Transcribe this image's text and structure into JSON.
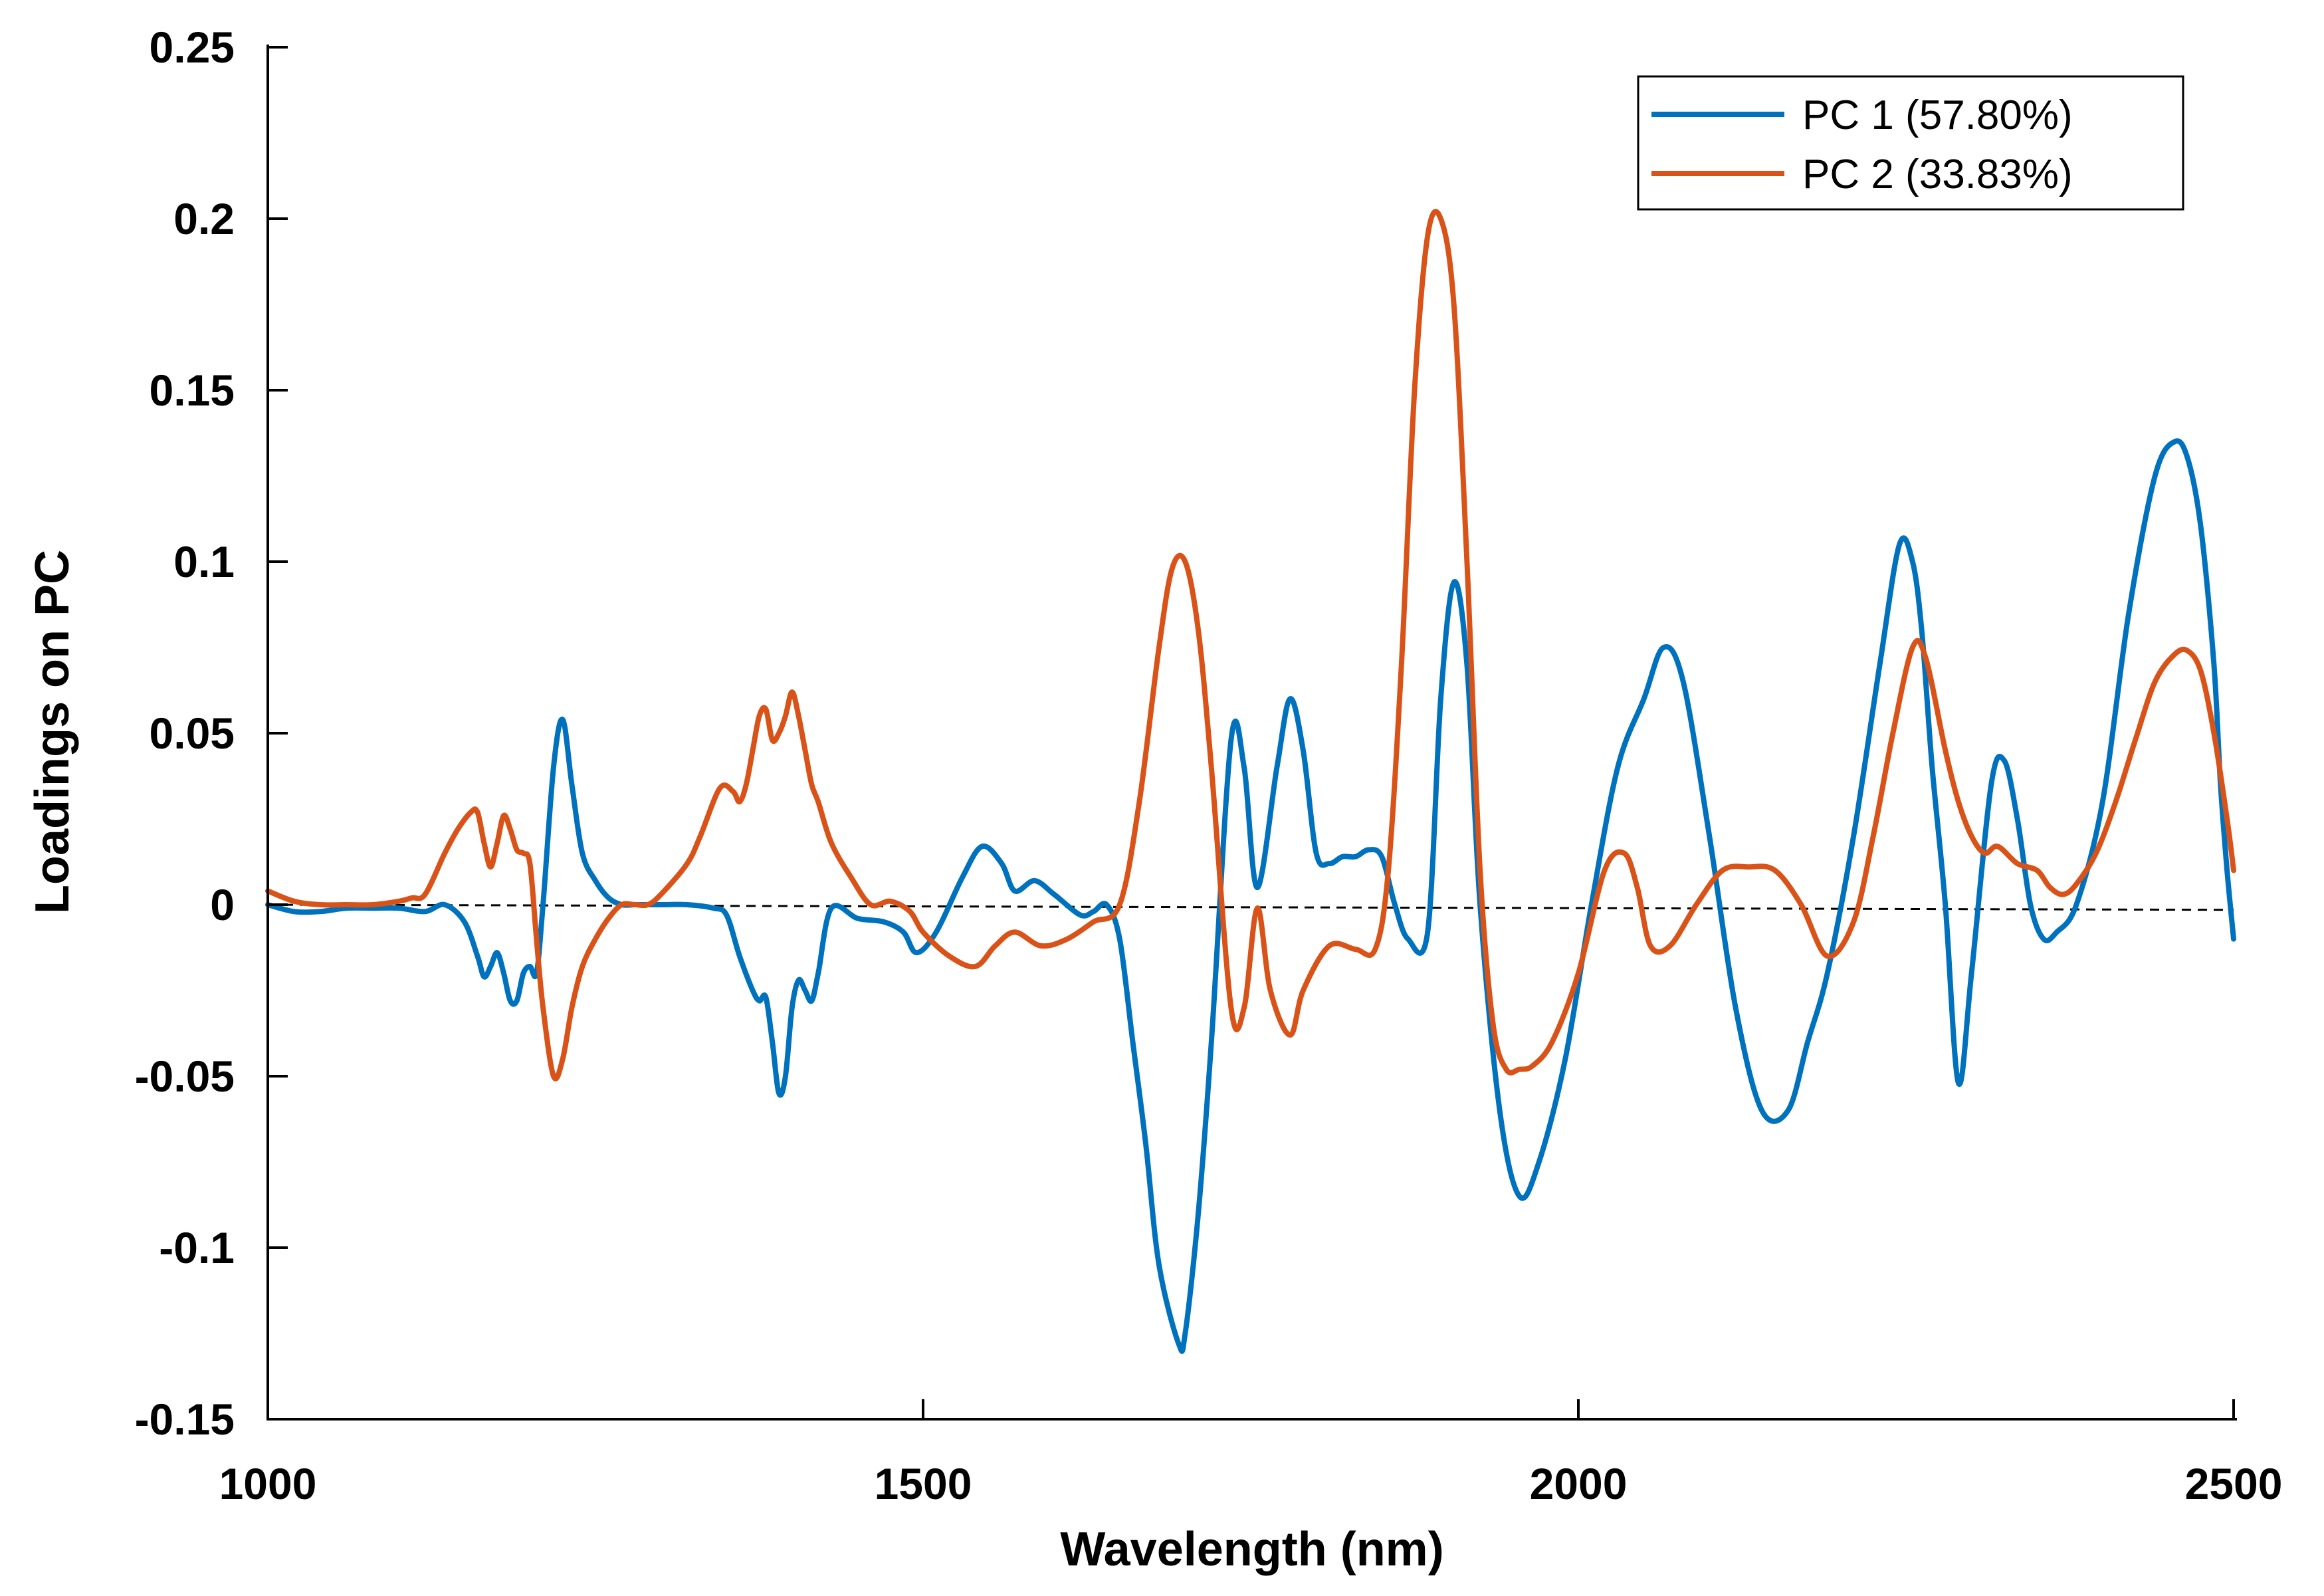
{
  "chart_data": {
    "type": "line",
    "title": "",
    "xlabel": "Wavelength (nm)",
    "ylabel": "Loadings on PC",
    "xlim": [
      1000,
      2500
    ],
    "ylim": [
      -0.15,
      0.25
    ],
    "xticks": [
      1000,
      1500,
      2000,
      2500
    ],
    "xtick_labels": [
      "1000",
      "1500",
      "2000",
      "2500"
    ],
    "yticks": [
      -0.15,
      -0.1,
      -0.05,
      0,
      0.05,
      0.1,
      0.15,
      0.2,
      0.25
    ],
    "ytick_labels": [
      "-0.15",
      "-0.1",
      "-0.05",
      "0",
      "0.05",
      "0.1",
      "0.15",
      "0.2",
      "0.25"
    ],
    "grid": false,
    "legend_position": "top-right",
    "reference_line": {
      "type": "dashed",
      "x": [
        1000,
        2500
      ],
      "y": [
        0.0,
        -0.0015
      ],
      "color": "#000000"
    },
    "series": [
      {
        "name": "PC 1 (57.80%)",
        "color": "#0072BD",
        "x": [
          1000,
          1020,
          1040,
          1060,
          1080,
          1100,
          1120,
          1135,
          1150,
          1160,
          1165,
          1170,
          1175,
          1180,
          1185,
          1190,
          1195,
          1200,
          1205,
          1210,
          1218,
          1225,
          1232,
          1240,
          1250,
          1260,
          1270,
          1280,
          1290,
          1300,
          1320,
          1340,
          1350,
          1360,
          1370,
          1375,
          1380,
          1385,
          1390,
          1395,
          1400,
          1405,
          1410,
          1415,
          1420,
          1430,
          1450,
          1470,
          1485,
          1495,
          1510,
          1530,
          1545,
          1560,
          1570,
          1585,
          1600,
          1620,
          1630,
          1640,
          1650,
          1660,
          1670,
          1680,
          1695,
          1700,
          1710,
          1720,
          1735,
          1745,
          1755,
          1770,
          1780,
          1790,
          1800,
          1810,
          1820,
          1830,
          1840,
          1850,
          1860,
          1870,
          1885,
          1895,
          1905,
          1915,
          1925,
          1940,
          1955,
          1970,
          1990,
          2010,
          2030,
          2050,
          2065,
          2080,
          2100,
          2120,
          2140,
          2160,
          2175,
          2190,
          2210,
          2230,
          2245,
          2255,
          2262,
          2270,
          2280,
          2290,
          2300,
          2315,
          2325,
          2335,
          2345,
          2355,
          2365,
          2380,
          2400,
          2420,
          2440,
          2455,
          2465,
          2475,
          2485,
          2490,
          2495,
          2500
        ],
        "y": [
          0.0,
          -0.002,
          -0.002,
          -0.001,
          -0.001,
          -0.001,
          -0.002,
          0.0,
          -0.005,
          -0.015,
          -0.021,
          -0.018,
          -0.014,
          -0.02,
          -0.028,
          -0.028,
          -0.02,
          -0.018,
          -0.02,
          0.0,
          0.04,
          0.054,
          0.035,
          0.015,
          0.007,
          0.002,
          0.0,
          0.0,
          0.0,
          0.0,
          0.0,
          -0.001,
          -0.003,
          -0.015,
          -0.025,
          -0.028,
          -0.027,
          -0.04,
          -0.055,
          -0.05,
          -0.03,
          -0.022,
          -0.025,
          -0.028,
          -0.02,
          -0.001,
          -0.004,
          -0.005,
          -0.008,
          -0.014,
          -0.008,
          0.008,
          0.017,
          0.012,
          0.004,
          0.007,
          0.003,
          -0.003,
          -0.002,
          0.0,
          -0.01,
          -0.04,
          -0.07,
          -0.105,
          -0.128,
          -0.125,
          -0.09,
          -0.04,
          0.048,
          0.04,
          0.005,
          0.04,
          0.06,
          0.045,
          0.015,
          0.012,
          0.014,
          0.014,
          0.016,
          0.014,
          0.0,
          -0.01,
          -0.008,
          0.06,
          0.094,
          0.07,
          0.0,
          -0.06,
          -0.085,
          -0.075,
          -0.045,
          0.0,
          0.04,
          0.06,
          0.075,
          0.065,
          0.02,
          -0.03,
          -0.06,
          -0.06,
          -0.04,
          -0.02,
          0.02,
          0.07,
          0.105,
          0.1,
          0.08,
          0.04,
          0.0,
          -0.052,
          -0.02,
          0.035,
          0.042,
          0.025,
          0.0,
          -0.01,
          -0.008,
          0.0,
          0.03,
          0.085,
          0.125,
          0.135,
          0.13,
          0.11,
          0.07,
          0.035,
          0.01,
          -0.01
        ]
      },
      {
        "name": "PC 2 (33.83%)",
        "color": "#D95319",
        "x": [
          1000,
          1020,
          1040,
          1060,
          1080,
          1100,
          1110,
          1120,
          1135,
          1145,
          1155,
          1160,
          1165,
          1170,
          1175,
          1180,
          1185,
          1190,
          1195,
          1200,
          1205,
          1210,
          1218,
          1225,
          1232,
          1240,
          1250,
          1260,
          1270,
          1280,
          1290,
          1300,
          1320,
          1330,
          1345,
          1355,
          1360,
          1365,
          1370,
          1375,
          1380,
          1385,
          1390,
          1395,
          1400,
          1405,
          1410,
          1415,
          1420,
          1430,
          1445,
          1460,
          1475,
          1490,
          1500,
          1520,
          1540,
          1555,
          1570,
          1590,
          1610,
          1630,
          1650,
          1665,
          1680,
          1690,
          1700,
          1710,
          1720,
          1735,
          1745,
          1755,
          1765,
          1780,
          1790,
          1810,
          1830,
          1845,
          1855,
          1865,
          1875,
          1885,
          1895,
          1905,
          1915,
          1925,
          1935,
          1945,
          1955,
          1965,
          1980,
          2000,
          2020,
          2035,
          2045,
          2055,
          2070,
          2090,
          2110,
          2130,
          2150,
          2170,
          2190,
          2210,
          2225,
          2240,
          2255,
          2265,
          2280,
          2290,
          2300,
          2310,
          2320,
          2335,
          2350,
          2360,
          2370,
          2380,
          2395,
          2410,
          2425,
          2440,
          2455,
          2465,
          2475,
          2485,
          2495,
          2500
        ],
        "y": [
          0.004,
          0.001,
          0.0,
          0.0,
          0.0,
          0.001,
          0.002,
          0.003,
          0.015,
          0.022,
          0.027,
          0.027,
          0.018,
          0.011,
          0.018,
          0.026,
          0.022,
          0.016,
          0.015,
          0.012,
          -0.01,
          -0.03,
          -0.05,
          -0.045,
          -0.03,
          -0.018,
          -0.01,
          -0.004,
          0.0,
          0.0,
          0.0,
          0.003,
          0.012,
          0.02,
          0.034,
          0.033,
          0.03,
          0.035,
          0.045,
          0.055,
          0.057,
          0.048,
          0.05,
          0.055,
          0.062,
          0.055,
          0.045,
          0.035,
          0.03,
          0.018,
          0.008,
          0.0,
          0.001,
          -0.002,
          -0.008,
          -0.015,
          -0.018,
          -0.012,
          -0.008,
          -0.012,
          -0.01,
          -0.005,
          0.0,
          0.03,
          0.075,
          0.098,
          0.1,
          0.08,
          0.04,
          -0.03,
          -0.03,
          -0.001,
          -0.025,
          -0.038,
          -0.025,
          -0.012,
          -0.013,
          -0.013,
          0.01,
          0.07,
          0.15,
          0.195,
          0.2,
          0.175,
          0.1,
          0.01,
          -0.035,
          -0.048,
          -0.048,
          -0.047,
          -0.04,
          -0.02,
          0.01,
          0.015,
          0.005,
          -0.012,
          -0.012,
          0.0,
          0.01,
          0.011,
          0.01,
          0.0,
          -0.015,
          -0.005,
          0.02,
          0.05,
          0.075,
          0.072,
          0.045,
          0.03,
          0.02,
          0.015,
          0.017,
          0.012,
          0.01,
          0.005,
          0.003,
          0.006,
          0.015,
          0.03,
          0.048,
          0.065,
          0.073,
          0.074,
          0.068,
          0.05,
          0.025,
          0.01
        ]
      }
    ]
  }
}
